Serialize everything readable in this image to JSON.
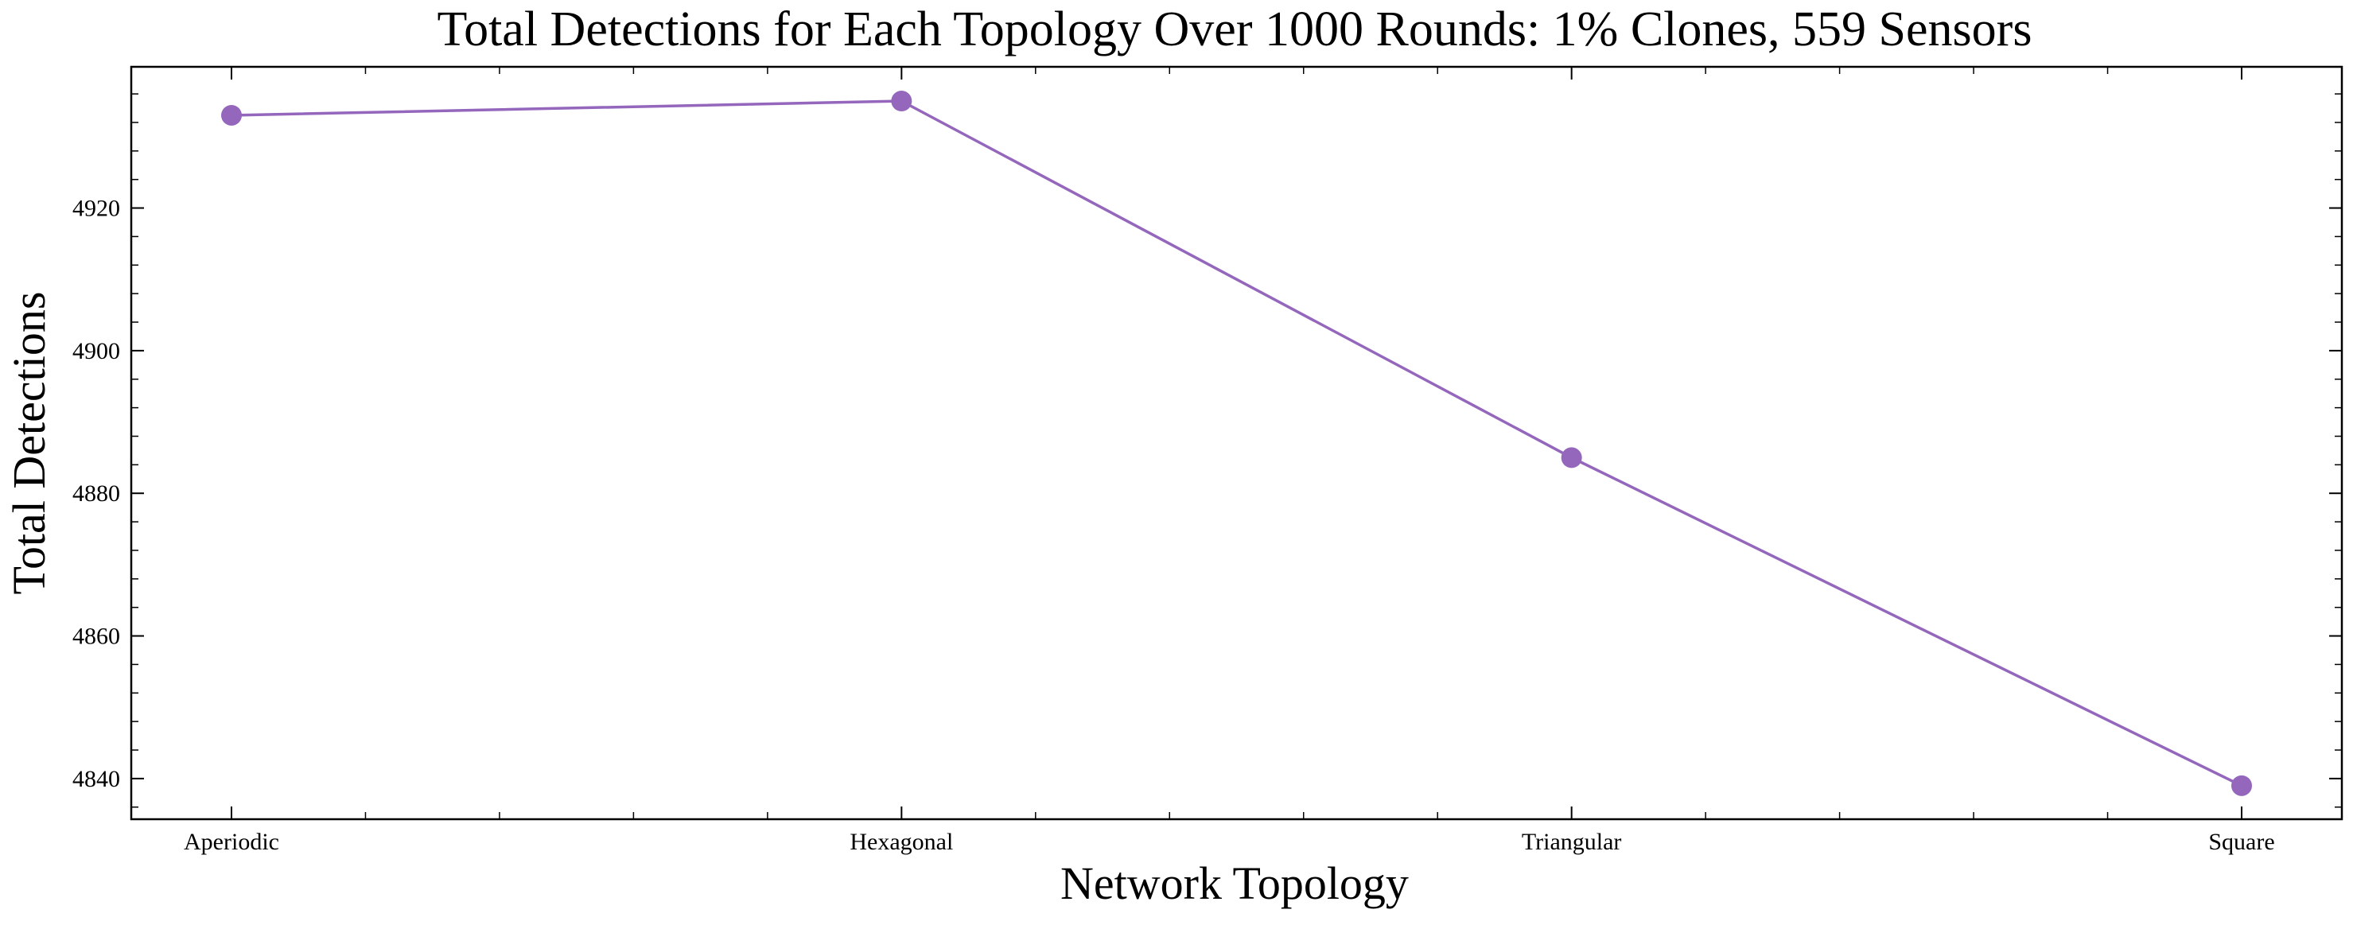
{
  "chart_data": {
    "type": "line",
    "title": "Total Detections for Each Topology Over 1000 Rounds: 1% Clones, 559 Sensors",
    "xlabel": "Network Topology",
    "ylabel": "Total Detections",
    "categories": [
      "Aperiodic",
      "Hexagonal",
      "Triangular",
      "Square"
    ],
    "series": [
      {
        "values": [
          4933,
          4935,
          4885,
          4839
        ]
      }
    ],
    "ylim": [
      4834.3,
      4939.8
    ],
    "yticks": [
      4840,
      4860,
      4880,
      4900,
      4920
    ],
    "ytick_labels": [
      "4840",
      "4860",
      "4880",
      "4900",
      "4920"
    ],
    "grid": false,
    "line_color": "#9467bd",
    "marker": "circle"
  }
}
